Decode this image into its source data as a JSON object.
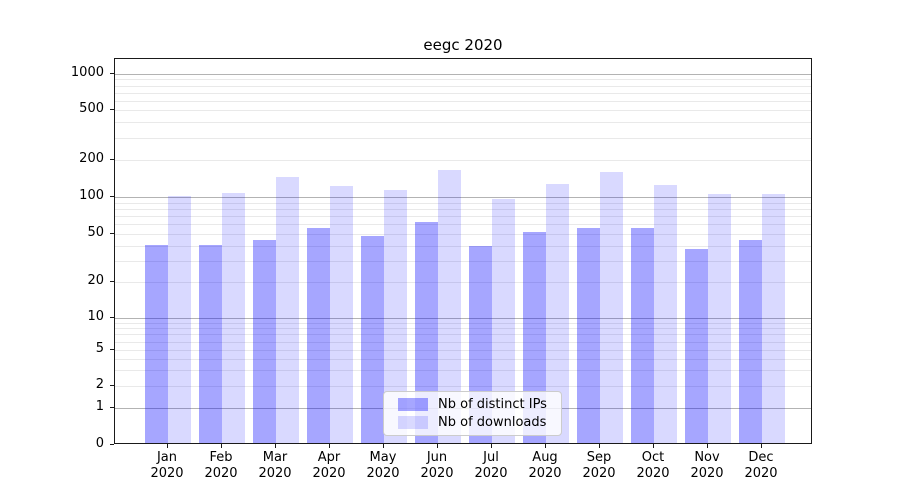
{
  "title": "eegc 2020",
  "chart_data": {
    "type": "bar",
    "title": "eegc 2020",
    "xlabel": "",
    "ylabel": "",
    "yscale": "symlog",
    "grid": true,
    "legend_position": "lower center",
    "y_ticks": [
      0,
      1,
      2,
      5,
      10,
      20,
      50,
      100,
      200,
      500,
      1000
    ],
    "ylim": [
      0,
      1400
    ],
    "categories": [
      "Jan 2020",
      "Feb 2020",
      "Mar 2020",
      "Apr 2020",
      "May 2020",
      "Jun 2020",
      "Jul 2020",
      "Aug 2020",
      "Sep 2020",
      "Oct 2020",
      "Nov 2020",
      "Dec 2020"
    ],
    "series": [
      {
        "name": "Nb of distinct IPs",
        "color": "rgba(0,0,255,0.35)",
        "values": [
          40,
          40,
          44,
          55,
          47,
          62,
          39,
          51,
          55,
          55,
          37,
          44
        ]
      },
      {
        "name": "Nb of downloads",
        "color": "rgba(0,0,255,0.15)",
        "values": [
          100,
          105,
          143,
          120,
          112,
          164,
          94,
          125,
          158,
          123,
          103,
          104
        ]
      }
    ]
  },
  "legend": {
    "items": [
      {
        "label": "Nb of distinct IPs",
        "color": "rgba(0,0,255,0.35)"
      },
      {
        "label": "Nb of downloads",
        "color": "rgba(0,0,255,0.15)"
      }
    ]
  },
  "colors": {
    "major_grid": "#b3b3b3",
    "minor_grid": "#e9e9e9",
    "spine": "#1a1a1a",
    "bar_dark": "rgba(0,0,255,0.35)",
    "bar_light": "rgba(0,0,255,0.15)"
  }
}
